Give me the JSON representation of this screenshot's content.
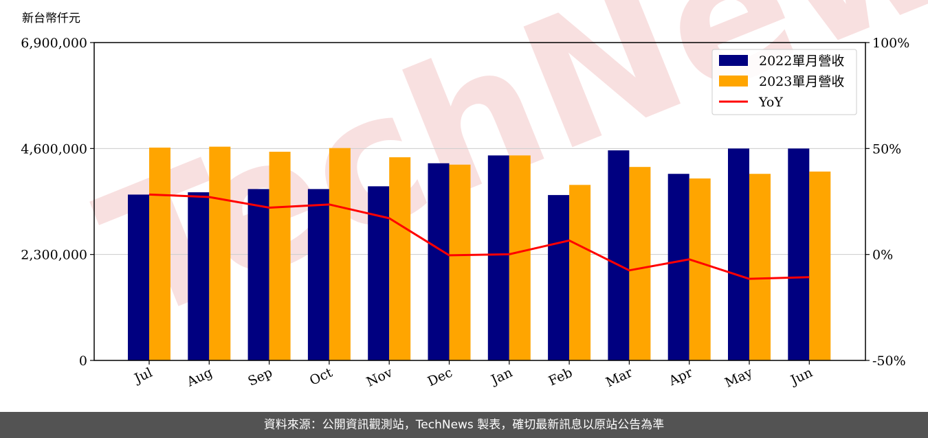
{
  "chart_data": {
    "type": "bar",
    "unit_label": "新台幣仟元",
    "categories": [
      "Jul",
      "Aug",
      "Sep",
      "Oct",
      "Nov",
      "Dec",
      "Jan",
      "Feb",
      "Mar",
      "Apr",
      "May",
      "Jun"
    ],
    "series": [
      {
        "name": "2022單月營收",
        "color": "#000080",
        "values": [
          3600000,
          3650000,
          3720000,
          3720000,
          3780000,
          4280000,
          4450000,
          3590000,
          4560000,
          4050000,
          4600000,
          4600000
        ]
      },
      {
        "name": "2023單月營收",
        "color": "#ffa500",
        "values": [
          4620000,
          4640000,
          4530000,
          4610000,
          4410000,
          4250000,
          4450000,
          3810000,
          4200000,
          3950000,
          4050000,
          4100000
        ]
      }
    ],
    "line_series": {
      "name": "YoY",
      "color": "#ff0000",
      "axis": "right",
      "values": [
        28.3,
        27.1,
        22.1,
        23.6,
        17.1,
        -0.4,
        0.1,
        6.6,
        -7.5,
        -2.3,
        -11.5,
        -10.7
      ]
    },
    "y_left": {
      "ticks": [
        0,
        2300000,
        4600000,
        6900000
      ],
      "tick_labels": [
        "0",
        "2,300,000",
        "4,600,000",
        "6,900,000"
      ],
      "range": [
        0,
        6900000
      ]
    },
    "y_right": {
      "ticks": [
        -50,
        0,
        50,
        100
      ],
      "tick_labels": [
        "-50%",
        "0%",
        "50%",
        "100%"
      ],
      "range": [
        -50,
        100
      ]
    },
    "grid": "horizontal",
    "legend_position": "top-right",
    "watermark": "TechNews"
  },
  "footer": {
    "text": "資料來源：公開資訊觀測站，TechNews 製表，確切最新訊息以原站公告為準"
  }
}
